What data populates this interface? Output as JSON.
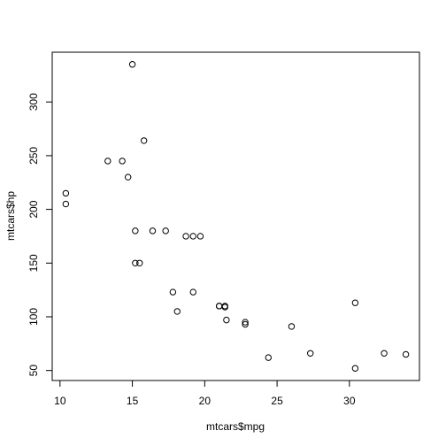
{
  "chart_data": {
    "type": "scatter",
    "x_label": "mtcars$mpg",
    "y_label": "mtcars$hp",
    "x": [
      21.0,
      21.0,
      22.8,
      21.4,
      18.7,
      18.1,
      14.3,
      24.4,
      22.8,
      19.2,
      17.8,
      16.4,
      17.3,
      15.2,
      10.4,
      10.4,
      14.7,
      32.4,
      30.4,
      33.9,
      21.5,
      15.5,
      15.2,
      13.3,
      19.2,
      27.3,
      26.0,
      30.4,
      15.8,
      19.7,
      15.0,
      21.4
    ],
    "values": [
      110,
      110,
      93,
      110,
      175,
      105,
      245,
      62,
      95,
      123,
      123,
      180,
      180,
      180,
      205,
      215,
      230,
      66,
      52,
      65,
      97,
      150,
      150,
      245,
      175,
      66,
      91,
      113,
      264,
      175,
      335,
      109
    ],
    "color": "#000000",
    "xlim": [
      9.46,
      34.84
    ],
    "ylim": [
      40.68,
      346.32
    ],
    "xticks": [
      10,
      15,
      20,
      25,
      30
    ],
    "yticks": [
      50,
      100,
      150,
      200,
      250,
      300
    ]
  }
}
